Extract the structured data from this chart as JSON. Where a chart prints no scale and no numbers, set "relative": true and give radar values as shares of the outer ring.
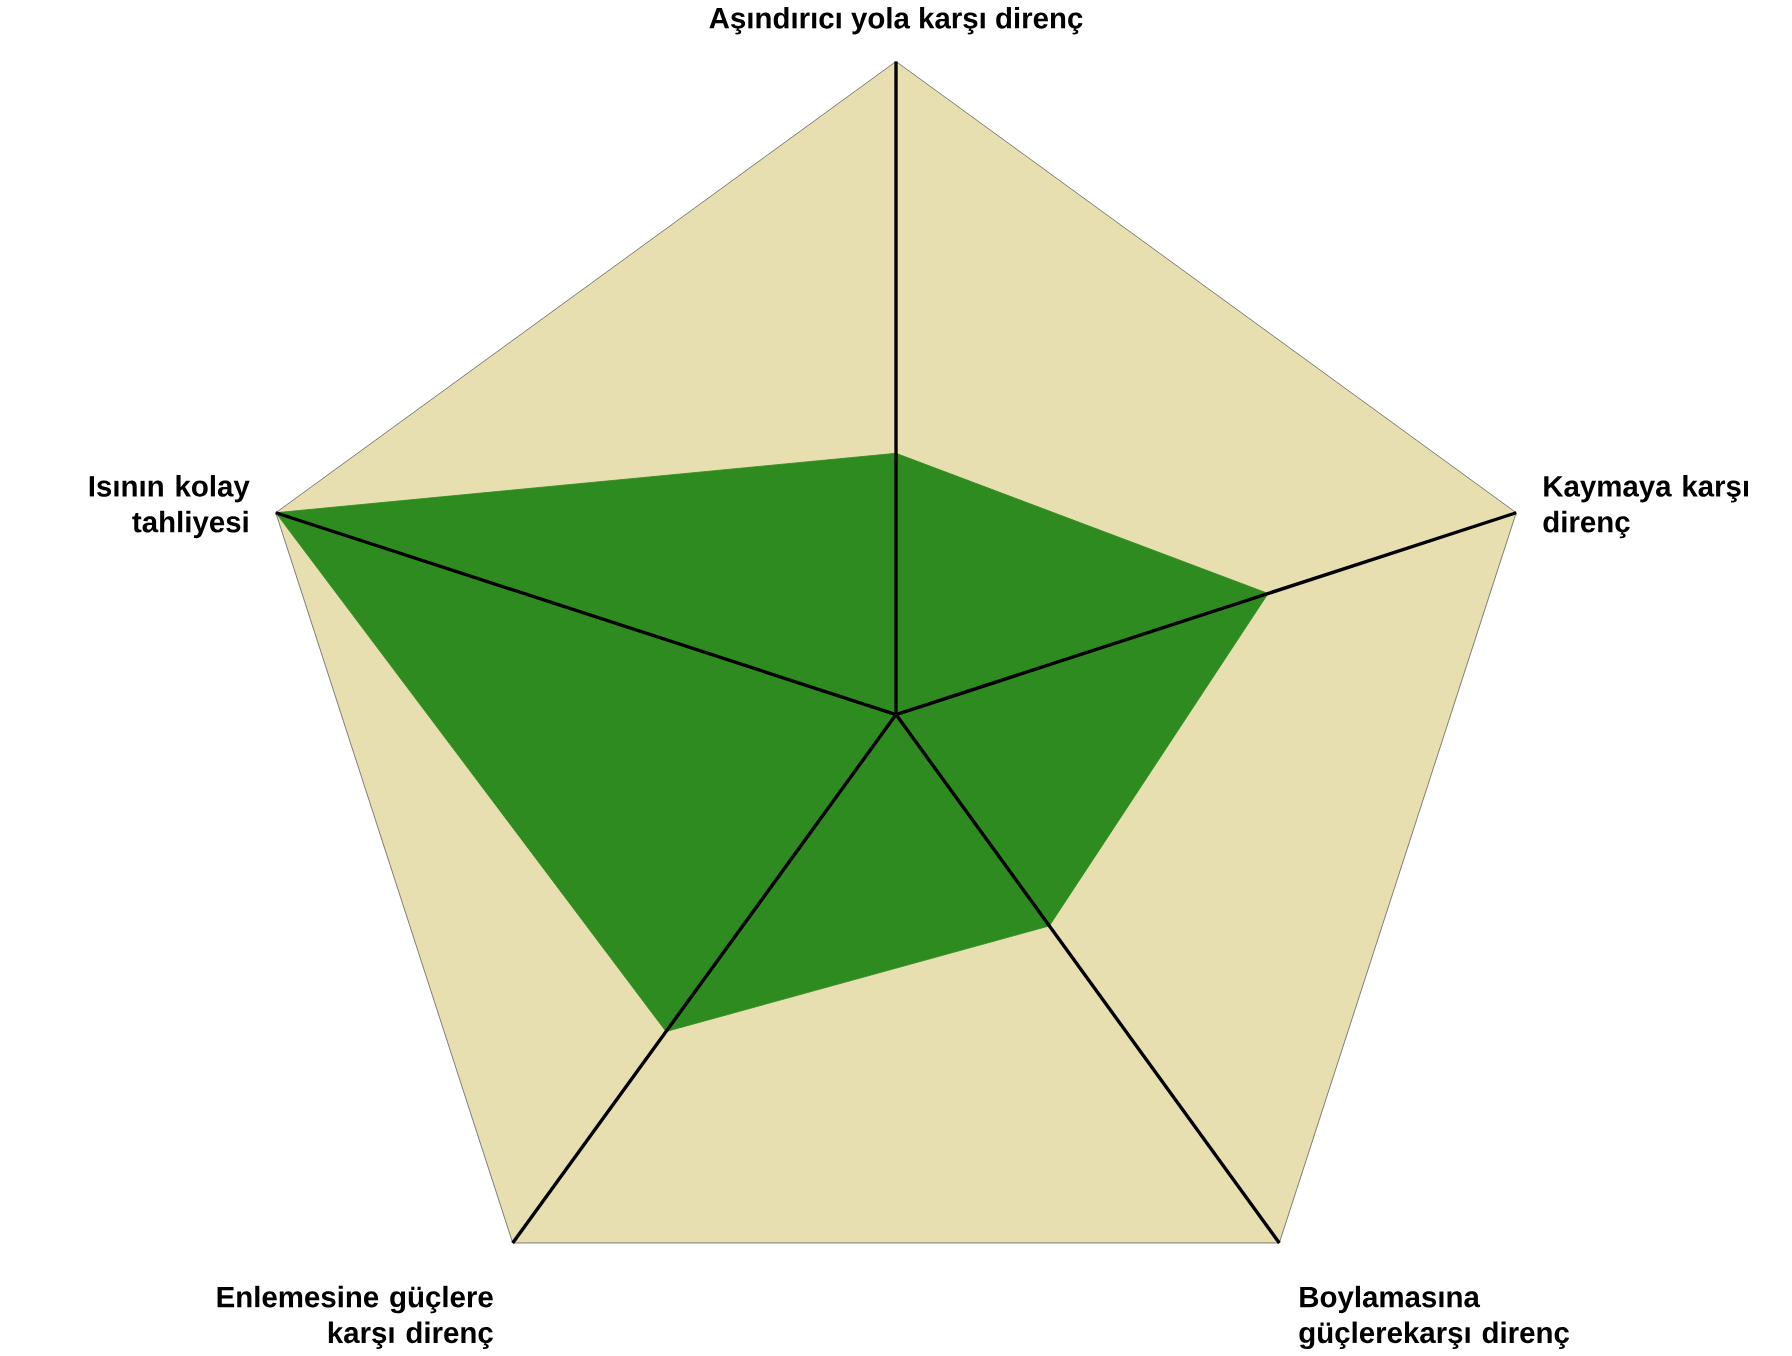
{
  "chart_data": {
    "type": "radar",
    "relative": true,
    "categories": [
      "Aşındırıcı yola karşı direnç",
      "Kaymaya karşı direnç",
      "Boylamasına güçlerekarşı direnç",
      "Enlemesine güçlere karşı direnç",
      "Isının kolay tahliyesi"
    ],
    "series": [
      {
        "color": "#2e8b1f",
        "values": [
          0.4,
          0.6,
          0.4,
          0.6,
          1.0
        ]
      }
    ]
  }
}
